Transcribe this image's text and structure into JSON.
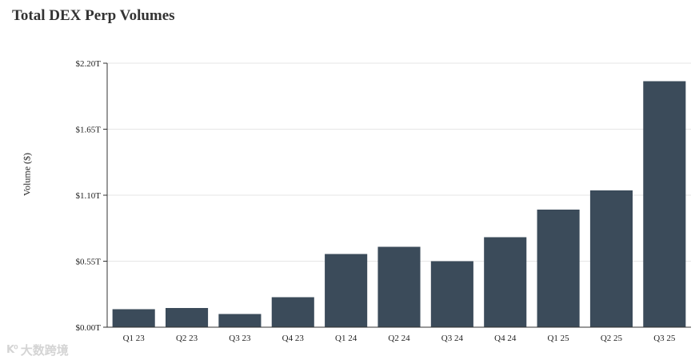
{
  "chart_data": {
    "type": "bar",
    "title": "Total DEX Perp Volumes",
    "xlabel": "",
    "ylabel": "Volume ($)",
    "categories": [
      "Q1 23",
      "Q2 23",
      "Q3 23",
      "Q4 23",
      "Q1 24",
      "Q2 24",
      "Q3 24",
      "Q4 24",
      "Q1 25",
      "Q2 25",
      "Q3 25"
    ],
    "values": [
      0.15,
      0.16,
      0.11,
      0.25,
      0.61,
      0.67,
      0.55,
      0.75,
      0.98,
      1.14,
      2.05
    ],
    "value_unit": "T",
    "yticks": [
      "$0.00T",
      "$0.55T",
      "$1.10T",
      "$1.65T",
      "$2.20T"
    ],
    "ytick_values": [
      0,
      0.55,
      1.1,
      1.65,
      2.2
    ],
    "ylim": [
      0,
      2.2
    ],
    "grid": true,
    "legend": "none",
    "colors": {
      "bar": "#3b4b5a",
      "grid": "#e6e6e6",
      "axis": "#333333"
    }
  },
  "watermark": {
    "logo": "K⁰",
    "text": "大数跨境"
  }
}
